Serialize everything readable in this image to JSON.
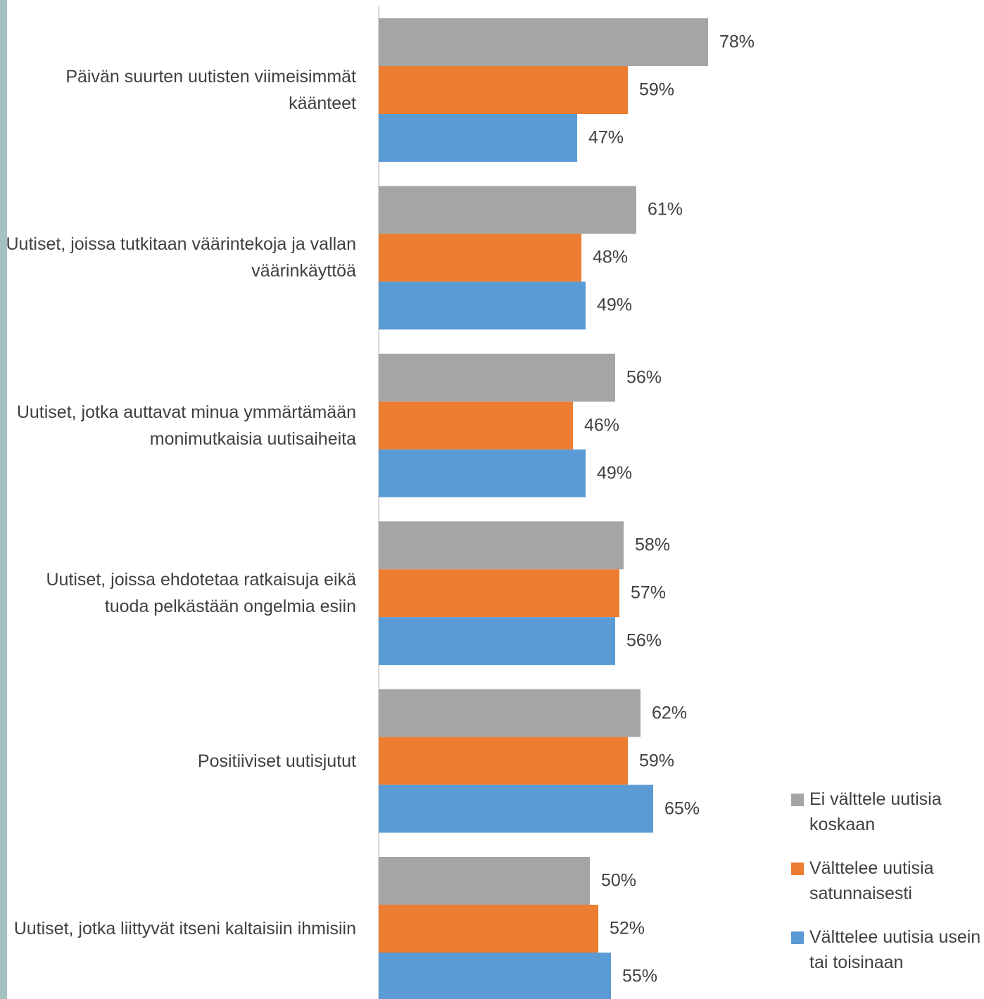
{
  "chart_data": {
    "type": "bar",
    "orientation": "horizontal",
    "categories": [
      "Päivän suurten uutisten viimeisimmät käänteet",
      "Uutiset, joissa tutkitaan väärintekoja ja vallan väärinkäyttöä",
      "Uutiset, jotka auttavat minua ymmärtämään monimutkaisia uutisaiheita",
      "Uutiset, joissa ehdotetaa ratkaisuja eikä tuoda pelkästään ongelmia esiin",
      "Positiiviset uutisjutut",
      "Uutiset, jotka liittyvät itseni kaltaisiin ihmisiin"
    ],
    "series": [
      {
        "name": "Ei välttele uutisia koskaan",
        "color": "#a5a5a5",
        "values": [
          78,
          61,
          56,
          58,
          62,
          50
        ],
        "value_labels": [
          "78%",
          "61%",
          "56%",
          "58%",
          "62%",
          "50%"
        ]
      },
      {
        "name": "Välttelee uutisia satunnaisesti",
        "color": "#ed7d31",
        "values": [
          59,
          48,
          46,
          57,
          59,
          52
        ],
        "value_labels": [
          "59%",
          "48%",
          "46%",
          "57%",
          "59%",
          "52%"
        ]
      },
      {
        "name": "Välttelee uutisia usein tai toisinaan",
        "color": "#5b9bd5",
        "values": [
          47,
          49,
          49,
          56,
          65,
          55
        ],
        "value_labels": [
          "47%",
          "49%",
          "49%",
          "56%",
          "65%",
          "55%"
        ]
      }
    ],
    "xlim": [
      0,
      100
    ],
    "legend": "right"
  }
}
